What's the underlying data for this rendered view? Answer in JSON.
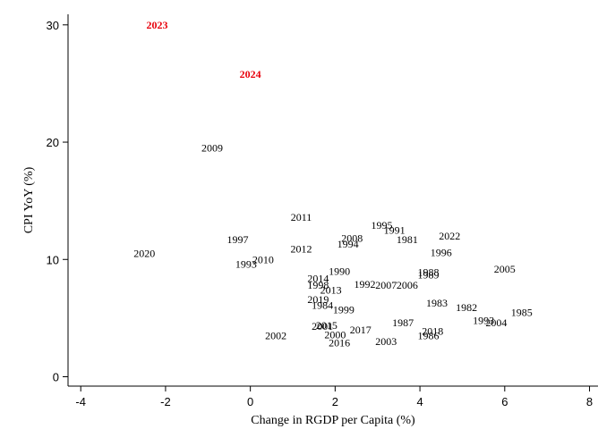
{
  "chart_data": {
    "type": "scatter",
    "title": "",
    "xlabel": "Change in RGDP per Capita (%)",
    "ylabel": "CPI YoY (%)",
    "xlim": [
      -4.3,
      8.2
    ],
    "ylim": [
      -0.8,
      30.9
    ],
    "xticks": [
      -4,
      -2,
      0,
      2,
      4,
      6,
      8
    ],
    "yticks": [
      0,
      10,
      20,
      30
    ],
    "grid": false,
    "highlight_color": "#e8000b",
    "points": [
      {
        "label": "2023",
        "x": -2.2,
        "y": 30.0,
        "highlight": true
      },
      {
        "label": "2024",
        "x": 0.0,
        "y": 25.8,
        "highlight": true
      },
      {
        "label": "2009",
        "x": -0.9,
        "y": 19.5
      },
      {
        "label": "2011",
        "x": 1.2,
        "y": 13.6
      },
      {
        "label": "1995",
        "x": 3.1,
        "y": 12.9
      },
      {
        "label": "1991",
        "x": 3.4,
        "y": 12.5
      },
      {
        "label": "2022",
        "x": 4.7,
        "y": 12.0
      },
      {
        "label": "2008",
        "x": 2.4,
        "y": 11.8
      },
      {
        "label": "1981",
        "x": 3.7,
        "y": 11.7
      },
      {
        "label": "1997",
        "x": -0.3,
        "y": 11.7
      },
      {
        "label": "1994",
        "x": 2.3,
        "y": 11.3
      },
      {
        "label": "2012",
        "x": 1.2,
        "y": 10.9
      },
      {
        "label": "1996",
        "x": 4.5,
        "y": 10.6
      },
      {
        "label": "2020",
        "x": -2.5,
        "y": 10.5
      },
      {
        "label": "2010",
        "x": 0.3,
        "y": 10.0
      },
      {
        "label": "1993",
        "x": -0.1,
        "y": 9.6
      },
      {
        "label": "2005",
        "x": 6.0,
        "y": 9.2
      },
      {
        "label": "1990",
        "x": 2.1,
        "y": 9.0
      },
      {
        "label": "1988",
        "x": 4.2,
        "y": 8.9
      },
      {
        "label": "1989",
        "x": 4.2,
        "y": 8.7
      },
      {
        "label": "2014",
        "x": 1.6,
        "y": 8.4
      },
      {
        "label": "1998",
        "x": 1.6,
        "y": 7.8
      },
      {
        "label": "1992",
        "x": 2.7,
        "y": 7.9
      },
      {
        "label": "2007",
        "x": 3.2,
        "y": 7.8
      },
      {
        "label": "2006",
        "x": 3.7,
        "y": 7.8
      },
      {
        "label": "2013",
        "x": 1.9,
        "y": 7.4
      },
      {
        "label": "2019",
        "x": 1.6,
        "y": 6.6
      },
      {
        "label": "1983",
        "x": 4.4,
        "y": 6.3
      },
      {
        "label": "1984",
        "x": 1.7,
        "y": 6.1
      },
      {
        "label": "1999",
        "x": 2.2,
        "y": 5.7
      },
      {
        "label": "1982",
        "x": 5.1,
        "y": 5.9
      },
      {
        "label": "1985",
        "x": 6.4,
        "y": 5.5
      },
      {
        "label": "1993",
        "x": 5.5,
        "y": 4.8
      },
      {
        "label": "2004",
        "x": 5.8,
        "y": 4.6
      },
      {
        "label": "1987",
        "x": 3.6,
        "y": 4.6
      },
      {
        "label": "2015",
        "x": 1.8,
        "y": 4.4
      },
      {
        "label": "2001",
        "x": 1.7,
        "y": 4.3
      },
      {
        "label": "2017",
        "x": 2.6,
        "y": 4.0
      },
      {
        "label": "2018",
        "x": 4.3,
        "y": 3.9
      },
      {
        "label": "2000",
        "x": 2.0,
        "y": 3.6
      },
      {
        "label": "2002",
        "x": 0.6,
        "y": 3.5
      },
      {
        "label": "1986",
        "x": 4.2,
        "y": 3.5
      },
      {
        "label": "2003",
        "x": 3.2,
        "y": 3.0
      },
      {
        "label": "2016",
        "x": 2.1,
        "y": 2.9
      }
    ]
  }
}
